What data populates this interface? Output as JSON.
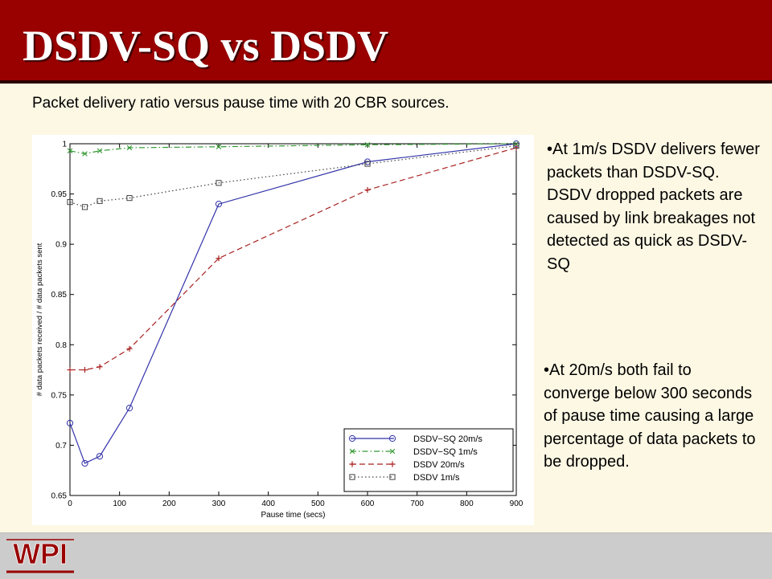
{
  "slide": {
    "title": "DSDV-SQ vs DSDV",
    "subtitle": "Packet delivery ratio versus pause time with 20 CBR sources.",
    "bullets": [
      "•At 1m/s DSDV delivers fewer packets than DSDV-SQ. DSDV dropped packets are caused by link breakages not detected as quick as DSDV-SQ",
      "•At 20m/s both fail to converge below 300 seconds of pause time causing a large percentage of data packets to be dropped."
    ],
    "logo_text": "WPI"
  },
  "chart_data": {
    "type": "line",
    "xlabel": "Pause time (secs)",
    "ylabel": "# data packets received / # data packets sent",
    "xlim": [
      0,
      900
    ],
    "ylim": [
      0.65,
      1.0
    ],
    "xticks": [
      0,
      100,
      200,
      300,
      400,
      500,
      600,
      700,
      800,
      900
    ],
    "yticks": [
      0.65,
      0.7,
      0.75,
      0.8,
      0.85,
      0.9,
      0.95,
      1
    ],
    "grid": false,
    "legend_position": "bottom-right",
    "series": [
      {
        "name": "DSDV−SQ 20m/s",
        "color": "#3333aa",
        "marker": "circle",
        "dash": "solid",
        "x": [
          0,
          30,
          60,
          120,
          300,
          600,
          900
        ],
        "y": [
          0.722,
          0.682,
          0.689,
          0.737,
          0.94,
          0.982,
          1.0
        ]
      },
      {
        "name": "DSDV−SQ 1m/s",
        "color": "#339933",
        "marker": "x",
        "dash": "dashdot",
        "x": [
          0,
          30,
          60,
          120,
          300,
          600,
          900
        ],
        "y": [
          0.993,
          0.99,
          0.993,
          0.996,
          0.997,
          0.999,
          1.0
        ]
      },
      {
        "name": "DSDV 20m/s",
        "color": "#aa2222",
        "marker": "plus",
        "dash": "dashed",
        "x": [
          0,
          30,
          60,
          120,
          300,
          600,
          900
        ],
        "y": [
          0.775,
          0.775,
          0.778,
          0.796,
          0.886,
          0.954,
          0.996
        ]
      },
      {
        "name": "DSDV 1m/s",
        "color": "#444444",
        "marker": "square",
        "dash": "dotted",
        "x": [
          0,
          30,
          60,
          120,
          300,
          600,
          900
        ],
        "y": [
          0.942,
          0.937,
          0.943,
          0.946,
          0.961,
          0.98,
          0.998
        ]
      }
    ]
  }
}
